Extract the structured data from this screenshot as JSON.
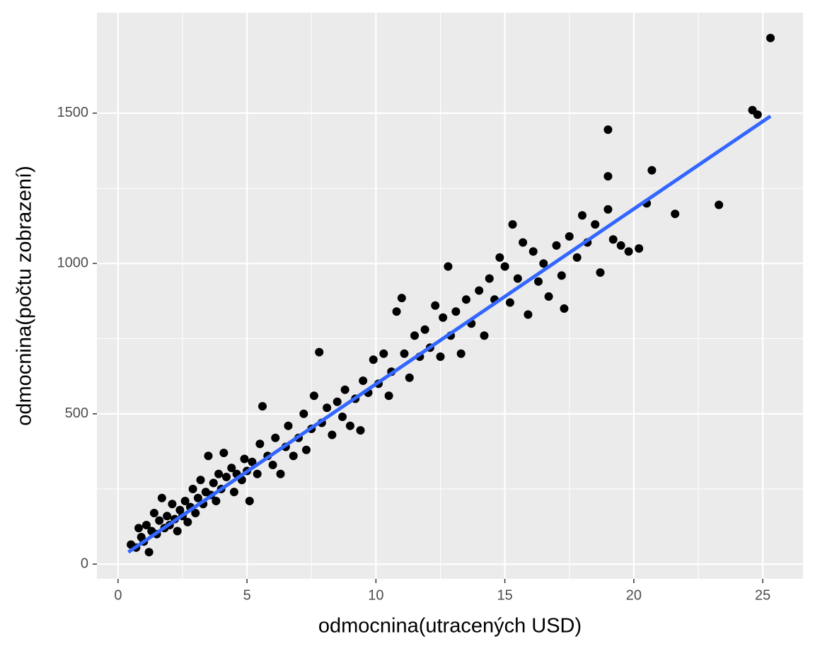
{
  "chart_data": {
    "type": "scatter",
    "x_label": "odmocnina(utracených USD)",
    "y_label": "odmocnina(počtu zobrazení)",
    "xlim": [
      -0.82,
      26.56
    ],
    "ylim": [
      -49,
      1834
    ],
    "xticks": [
      0,
      5,
      10,
      15,
      20,
      25
    ],
    "yticks": [
      0,
      500,
      1000,
      1500
    ],
    "grid": true,
    "minor_grid": true,
    "color": "#000000",
    "x": [
      0.5,
      0.7,
      0.8,
      0.9,
      1.0,
      1.1,
      1.2,
      1.3,
      1.4,
      1.5,
      1.6,
      1.7,
      1.8,
      1.9,
      2.0,
      2.1,
      2.2,
      2.3,
      2.4,
      2.5,
      2.6,
      2.7,
      2.8,
      2.9,
      3.0,
      3.1,
      3.2,
      3.3,
      3.4,
      3.5,
      3.6,
      3.7,
      3.8,
      3.9,
      4.0,
      4.1,
      4.2,
      4.4,
      4.5,
      4.6,
      4.8,
      4.9,
      5.0,
      5.1,
      5.2,
      5.4,
      5.5,
      5.6,
      5.8,
      6.0,
      6.1,
      6.3,
      6.5,
      6.6,
      6.8,
      7.0,
      7.2,
      7.3,
      7.5,
      7.6,
      7.8,
      7.9,
      8.1,
      8.3,
      8.5,
      8.7,
      8.8,
      9.0,
      9.2,
      9.4,
      9.5,
      9.7,
      9.9,
      10.1,
      10.3,
      10.5,
      10.6,
      10.8,
      11.0,
      11.1,
      11.3,
      11.5,
      11.7,
      11.9,
      12.1,
      12.3,
      12.5,
      12.6,
      12.8,
      12.9,
      13.1,
      13.3,
      13.5,
      13.7,
      14.0,
      14.2,
      14.4,
      14.6,
      14.8,
      15.0,
      15.2,
      15.3,
      15.5,
      15.7,
      15.9,
      16.1,
      16.3,
      16.5,
      16.7,
      17.0,
      17.2,
      17.3,
      17.5,
      17.8,
      18.0,
      18.2,
      18.5,
      18.7,
      19.0,
      19.0,
      19.0,
      19.2,
      19.5,
      19.8,
      20.2,
      20.5,
      20.7,
      21.6,
      23.3,
      24.6,
      24.8,
      25.3
    ],
    "values": [
      65,
      55,
      120,
      90,
      75,
      130,
      40,
      110,
      170,
      100,
      145,
      220,
      120,
      160,
      130,
      200,
      150,
      110,
      180,
      160,
      210,
      140,
      190,
      250,
      170,
      220,
      280,
      200,
      240,
      360,
      230,
      270,
      210,
      300,
      250,
      370,
      290,
      320,
      240,
      300,
      280,
      350,
      310,
      210,
      340,
      300,
      400,
      525,
      360,
      330,
      420,
      300,
      390,
      460,
      360,
      420,
      500,
      380,
      450,
      560,
      705,
      470,
      520,
      430,
      540,
      490,
      580,
      460,
      550,
      445,
      610,
      570,
      680,
      600,
      700,
      560,
      640,
      840,
      885,
      700,
      620,
      760,
      690,
      780,
      720,
      860,
      690,
      820,
      990,
      760,
      840,
      700,
      880,
      800,
      910,
      760,
      950,
      880,
      1020,
      990,
      870,
      1130,
      950,
      1070,
      830,
      1040,
      940,
      1000,
      890,
      1060,
      960,
      850,
      1090,
      1020,
      1160,
      1070,
      1130,
      970,
      1445,
      1290,
      1180,
      1080,
      1060,
      1040,
      1050,
      1200,
      1310,
      1165,
      1195,
      1510,
      1495,
      1750
    ],
    "fit_line": {
      "x": [
        0.4,
        25.3
      ],
      "y": [
        40,
        1490
      ],
      "color": "#3366ff"
    }
  }
}
